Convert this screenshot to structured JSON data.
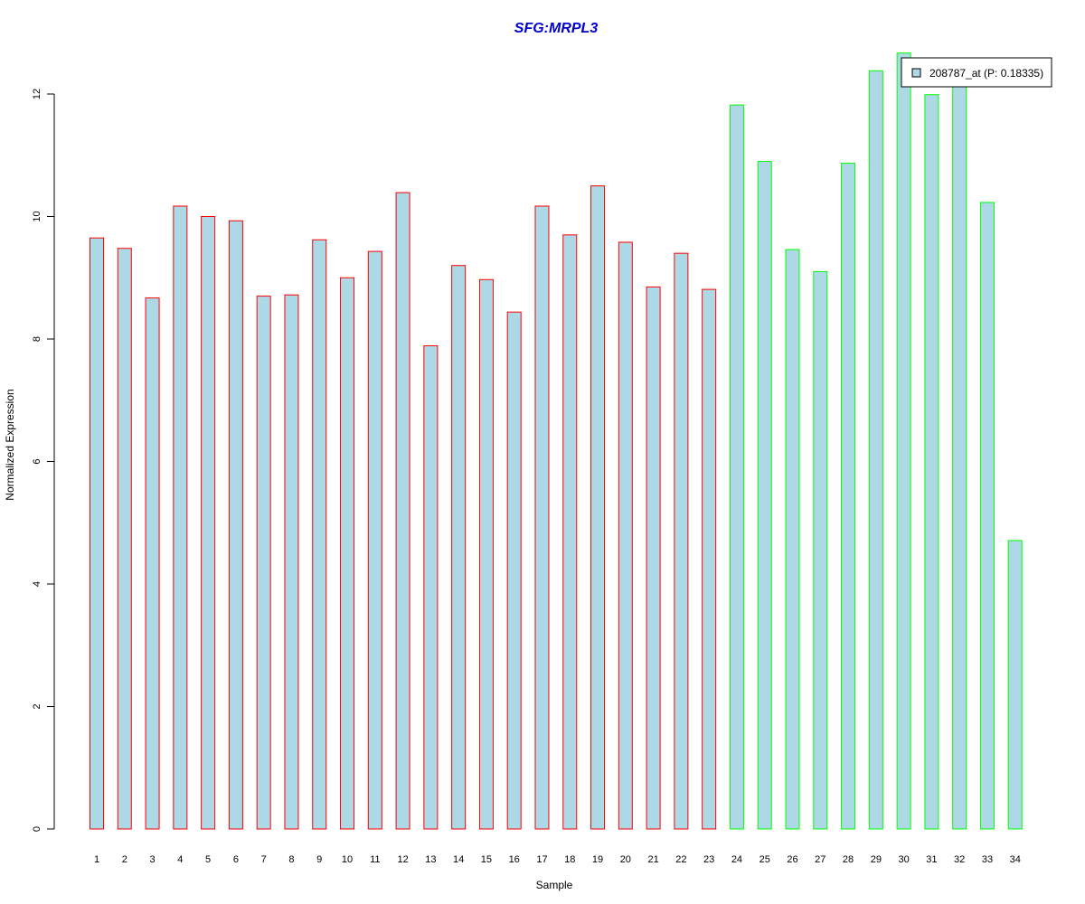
{
  "colors": {
    "bar_fill": "#add8e6",
    "group1_border": "#ff0000",
    "group2_border": "#00ff00",
    "title": "#0000cd",
    "axis": "#000000"
  },
  "chart_data": {
    "type": "bar",
    "title": "SFG:MRPL3",
    "xlabel": "Sample",
    "ylabel": "Normalized Expression",
    "ylim": [
      0,
      12.5
    ],
    "y_ticks": [
      0,
      2,
      4,
      6,
      8,
      10,
      12
    ],
    "grid": false,
    "legend": {
      "placement": "top-right",
      "entries": [
        "208787_at (P: 0.18335)"
      ]
    },
    "categories": [
      "1",
      "2",
      "3",
      "4",
      "5",
      "6",
      "7",
      "8",
      "9",
      "10",
      "11",
      "12",
      "13",
      "14",
      "15",
      "16",
      "17",
      "18",
      "19",
      "20",
      "21",
      "22",
      "23",
      "24",
      "25",
      "26",
      "27",
      "28",
      "29",
      "30",
      "31",
      "32",
      "33",
      "34"
    ],
    "values": [
      9.65,
      9.48,
      8.67,
      10.17,
      10.0,
      9.93,
      8.7,
      8.72,
      9.62,
      9.0,
      9.43,
      10.39,
      7.89,
      9.2,
      8.97,
      8.44,
      10.17,
      9.7,
      10.5,
      9.58,
      8.85,
      9.4,
      8.81,
      11.82,
      10.9,
      9.46,
      9.1,
      10.87,
      12.38,
      12.67,
      11.99,
      12.22,
      10.23,
      4.71
    ],
    "groups": [
      1,
      1,
      1,
      1,
      1,
      1,
      1,
      1,
      1,
      1,
      1,
      1,
      1,
      1,
      1,
      1,
      1,
      1,
      1,
      1,
      1,
      1,
      1,
      2,
      2,
      2,
      2,
      2,
      2,
      2,
      2,
      2,
      2,
      2
    ]
  }
}
